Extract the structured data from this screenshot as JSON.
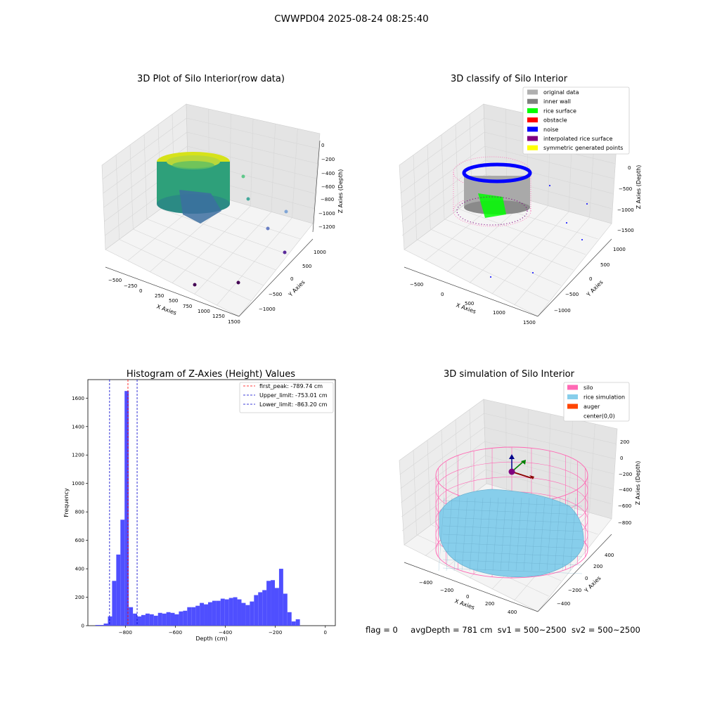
{
  "figure_title": "CWWPD04 2025-08-24 08:25:40",
  "footer": {
    "flag": "flag = 0",
    "avg_depth": "avgDepth = 781 cm",
    "sv1": "sv1 = 500~2500",
    "sv2": "sv2 = 500~2500"
  },
  "colors": {
    "hist_bar": "#4f4fff",
    "first_peak": "#ff0000",
    "limits": "#0000cc",
    "silo": "#ff69b4",
    "rice_simulation": "#87ceeb",
    "auger": "#ff4500",
    "original_data": "#b0b0b0",
    "inner_wall": "#808080",
    "rice_surface": "#00ff00",
    "obstacle": "#ff0000",
    "noise": "#0000ff",
    "interpolated_rice_surface": "#800080",
    "symmetric_generated_points": "#ffff00"
  },
  "chart_data": [
    {
      "type": "scatter",
      "panel": "raw",
      "title": "3D Plot of Silo Interior(row data)",
      "xlabel": "X Axies",
      "ylabel": "Y Axies",
      "zlabel": "Z Axies (Depth)",
      "xticks": [
        "−500",
        "−250",
        "0",
        "250",
        "500",
        "750",
        "1000",
        "1250",
        "1500"
      ],
      "yticks": [
        "1000",
        "500",
        "0",
        "−500",
        "−1000"
      ],
      "zticks": [
        "0",
        "−200",
        "−400",
        "−600",
        "−800",
        "−1000",
        "−1200"
      ],
      "grid": true
    },
    {
      "type": "scatter",
      "panel": "classify",
      "title": "3D classify of Silo Interior",
      "xlabel": "X Axies",
      "ylabel": "Y Axies",
      "zlabel": "Z Axies (Depth)",
      "xticks": [
        "−500",
        "0",
        "500",
        "1000",
        "1500"
      ],
      "yticks": [
        "1000",
        "500",
        "0",
        "−500",
        "−1000"
      ],
      "zticks": [
        "0",
        "−500",
        "−1000",
        "−1500"
      ],
      "legend_position": "top-right",
      "legend": [
        {
          "label": "original data",
          "color": "#b0b0b0"
        },
        {
          "label": "inner wall",
          "color": "#808080"
        },
        {
          "label": "rice surface",
          "color": "#00ff00"
        },
        {
          "label": "obstacle",
          "color": "#ff0000"
        },
        {
          "label": "noise",
          "color": "#0000ff"
        },
        {
          "label": "interpolated rice surface",
          "color": "#800080"
        },
        {
          "label": "symmetric generated points",
          "color": "#ffff00"
        }
      ],
      "grid": true
    },
    {
      "type": "bar",
      "panel": "histogram",
      "title": "Histogram of Z-Axies (Height) Values",
      "xlabel": "Depth (cm)",
      "ylabel": "Frequency",
      "xlim": [
        -950,
        40
      ],
      "ylim": [
        0,
        1730
      ],
      "xticks": [
        -800,
        -600,
        -400,
        -200,
        0
      ],
      "xtick_labels": [
        "−800",
        "−600",
        "−400",
        "−200",
        "0"
      ],
      "yticks": [
        0,
        200,
        400,
        600,
        800,
        1000,
        1200,
        1400,
        1600
      ],
      "bin_start": -920,
      "bin_width": 16.7,
      "values": [
        5,
        5,
        15,
        65,
        315,
        500,
        745,
        1650,
        130,
        85,
        65,
        75,
        85,
        80,
        70,
        90,
        85,
        95,
        90,
        80,
        100,
        105,
        130,
        130,
        140,
        160,
        150,
        165,
        175,
        175,
        190,
        185,
        195,
        200,
        185,
        160,
        145,
        170,
        215,
        235,
        250,
        315,
        320,
        265,
        400,
        225,
        95,
        30,
        45
      ],
      "vlines": [
        {
          "label": "first_peak: -789.74 cm",
          "x": -789.74,
          "color": "#ff0000"
        },
        {
          "label": "Upper_limit: -753.01 cm",
          "x": -753.01,
          "color": "#0000cc"
        },
        {
          "label": "Lower_limit: -863.20 cm",
          "x": -863.2,
          "color": "#0000cc"
        }
      ],
      "legend_position": "top-right",
      "grid": false
    },
    {
      "type": "scatter",
      "panel": "simulation",
      "title": "3D simulation of Silo Interior",
      "xlabel": "X Axies",
      "ylabel": "Y Axies",
      "zlabel": "Z Axies (Depth)",
      "xticks": [
        "−400",
        "−200",
        "0",
        "200",
        "400"
      ],
      "yticks": [
        "400",
        "200",
        "0",
        "−200",
        "−400"
      ],
      "zticks": [
        "200",
        "0",
        "−200",
        "−400",
        "−600",
        "−800"
      ],
      "legend_position": "top-right",
      "legend": [
        {
          "label": "silo",
          "color": "#ff69b4"
        },
        {
          "label": "rice simulation",
          "color": "#87ceeb"
        },
        {
          "label": "auger",
          "color": "#ff4500"
        },
        {
          "label": "center(0,0)",
          "color": ""
        }
      ],
      "grid": true
    }
  ]
}
